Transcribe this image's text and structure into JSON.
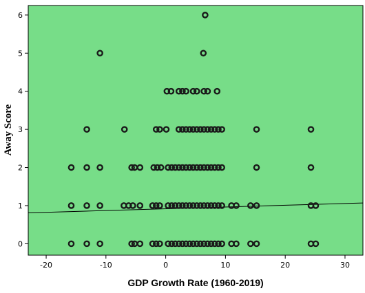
{
  "chart_data": {
    "type": "scatter",
    "title": "",
    "xlabel": "GDP Growth Rate (1960-2019)",
    "ylabel": "Away Score",
    "xlim": [
      -23,
      33
    ],
    "ylim": [
      -0.3,
      6.25
    ],
    "xticks": [
      "-20",
      "-10",
      "0",
      "10",
      "20",
      "30"
    ],
    "yticks": [
      "0",
      "1",
      "2",
      "3",
      "4",
      "5",
      "6"
    ],
    "grid": false,
    "legend": "none",
    "colors": {
      "plot_background": "#77dd88",
      "marker": "#1a1a1a",
      "fit_line": "#000000",
      "frame": "#000000"
    },
    "fit_line": {
      "x": [
        -23,
        33
      ],
      "y": [
        0.81,
        1.07
      ]
    },
    "points": [
      {
        "x": -15.8,
        "y": 0
      },
      {
        "x": -13.2,
        "y": 0
      },
      {
        "x": -11.0,
        "y": 0
      },
      {
        "x": -5.7,
        "y": 0
      },
      {
        "x": -5.2,
        "y": 0
      },
      {
        "x": -4.3,
        "y": 0
      },
      {
        "x": -2.2,
        "y": 0
      },
      {
        "x": -1.6,
        "y": 0
      },
      {
        "x": -1.0,
        "y": 0
      },
      {
        "x": 0.4,
        "y": 0
      },
      {
        "x": 1.0,
        "y": 0
      },
      {
        "x": 1.6,
        "y": 0
      },
      {
        "x": 2.2,
        "y": 0
      },
      {
        "x": 2.8,
        "y": 0
      },
      {
        "x": 3.4,
        "y": 0
      },
      {
        "x": 4.0,
        "y": 0
      },
      {
        "x": 4.6,
        "y": 0
      },
      {
        "x": 5.2,
        "y": 0
      },
      {
        "x": 5.8,
        "y": 0
      },
      {
        "x": 6.4,
        "y": 0
      },
      {
        "x": 7.0,
        "y": 0
      },
      {
        "x": 7.6,
        "y": 0
      },
      {
        "x": 8.2,
        "y": 0
      },
      {
        "x": 8.8,
        "y": 0
      },
      {
        "x": 9.4,
        "y": 0
      },
      {
        "x": 11.0,
        "y": 0
      },
      {
        "x": 11.8,
        "y": 0
      },
      {
        "x": 14.2,
        "y": 0
      },
      {
        "x": 15.2,
        "y": 0
      },
      {
        "x": 24.3,
        "y": 0
      },
      {
        "x": 25.1,
        "y": 0
      },
      {
        "x": -15.8,
        "y": 1
      },
      {
        "x": -13.2,
        "y": 1
      },
      {
        "x": -11.0,
        "y": 1
      },
      {
        "x": -7.0,
        "y": 1
      },
      {
        "x": -6.2,
        "y": 1
      },
      {
        "x": -5.5,
        "y": 1
      },
      {
        "x": -4.3,
        "y": 1
      },
      {
        "x": -2.2,
        "y": 1
      },
      {
        "x": -1.6,
        "y": 1
      },
      {
        "x": -1.0,
        "y": 1
      },
      {
        "x": 0.4,
        "y": 1
      },
      {
        "x": 1.0,
        "y": 1
      },
      {
        "x": 1.6,
        "y": 1
      },
      {
        "x": 2.2,
        "y": 1
      },
      {
        "x": 2.8,
        "y": 1
      },
      {
        "x": 3.4,
        "y": 1
      },
      {
        "x": 4.0,
        "y": 1
      },
      {
        "x": 4.6,
        "y": 1
      },
      {
        "x": 5.2,
        "y": 1
      },
      {
        "x": 5.8,
        "y": 1
      },
      {
        "x": 6.4,
        "y": 1
      },
      {
        "x": 7.0,
        "y": 1
      },
      {
        "x": 7.6,
        "y": 1
      },
      {
        "x": 8.2,
        "y": 1
      },
      {
        "x": 8.8,
        "y": 1
      },
      {
        "x": 9.4,
        "y": 1
      },
      {
        "x": 11.0,
        "y": 1
      },
      {
        "x": 11.8,
        "y": 1
      },
      {
        "x": 14.2,
        "y": 1
      },
      {
        "x": 15.2,
        "y": 1
      },
      {
        "x": 24.3,
        "y": 1
      },
      {
        "x": 25.1,
        "y": 1
      },
      {
        "x": -15.8,
        "y": 2
      },
      {
        "x": -13.2,
        "y": 2
      },
      {
        "x": -11.0,
        "y": 2
      },
      {
        "x": -5.7,
        "y": 2
      },
      {
        "x": -5.2,
        "y": 2
      },
      {
        "x": -4.3,
        "y": 2
      },
      {
        "x": -2.0,
        "y": 2
      },
      {
        "x": -1.4,
        "y": 2
      },
      {
        "x": -0.8,
        "y": 2
      },
      {
        "x": 0.4,
        "y": 2
      },
      {
        "x": 1.0,
        "y": 2
      },
      {
        "x": 1.6,
        "y": 2
      },
      {
        "x": 2.2,
        "y": 2
      },
      {
        "x": 2.8,
        "y": 2
      },
      {
        "x": 3.4,
        "y": 2
      },
      {
        "x": 4.0,
        "y": 2
      },
      {
        "x": 4.6,
        "y": 2
      },
      {
        "x": 5.2,
        "y": 2
      },
      {
        "x": 5.8,
        "y": 2
      },
      {
        "x": 6.4,
        "y": 2
      },
      {
        "x": 7.0,
        "y": 2
      },
      {
        "x": 7.6,
        "y": 2
      },
      {
        "x": 8.2,
        "y": 2
      },
      {
        "x": 8.8,
        "y": 2
      },
      {
        "x": 9.4,
        "y": 2
      },
      {
        "x": 15.2,
        "y": 2
      },
      {
        "x": 24.3,
        "y": 2
      },
      {
        "x": -13.2,
        "y": 3
      },
      {
        "x": -6.9,
        "y": 3
      },
      {
        "x": -1.6,
        "y": 3
      },
      {
        "x": -1.0,
        "y": 3
      },
      {
        "x": 0.1,
        "y": 3
      },
      {
        "x": 2.2,
        "y": 3
      },
      {
        "x": 2.8,
        "y": 3
      },
      {
        "x": 3.4,
        "y": 3
      },
      {
        "x": 4.0,
        "y": 3
      },
      {
        "x": 4.6,
        "y": 3
      },
      {
        "x": 5.2,
        "y": 3
      },
      {
        "x": 5.8,
        "y": 3
      },
      {
        "x": 6.4,
        "y": 3
      },
      {
        "x": 7.0,
        "y": 3
      },
      {
        "x": 7.6,
        "y": 3
      },
      {
        "x": 8.2,
        "y": 3
      },
      {
        "x": 8.8,
        "y": 3
      },
      {
        "x": 9.4,
        "y": 3
      },
      {
        "x": 15.2,
        "y": 3
      },
      {
        "x": 24.3,
        "y": 3
      },
      {
        "x": 0.2,
        "y": 4
      },
      {
        "x": 0.9,
        "y": 4
      },
      {
        "x": 2.2,
        "y": 4
      },
      {
        "x": 2.8,
        "y": 4
      },
      {
        "x": 3.4,
        "y": 4
      },
      {
        "x": 4.6,
        "y": 4
      },
      {
        "x": 5.2,
        "y": 4
      },
      {
        "x": 6.4,
        "y": 4
      },
      {
        "x": 7.0,
        "y": 4
      },
      {
        "x": 8.6,
        "y": 4
      },
      {
        "x": -11.0,
        "y": 5
      },
      {
        "x": 6.3,
        "y": 5
      },
      {
        "x": 6.6,
        "y": 6
      }
    ]
  }
}
